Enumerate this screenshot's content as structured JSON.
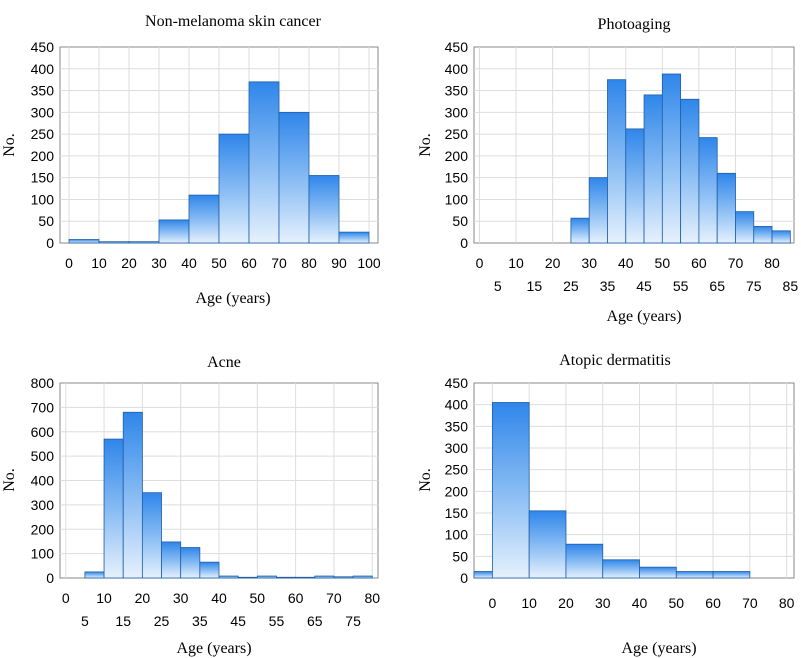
{
  "chart_data": [
    {
      "type": "bar",
      "title": "Non-melanoma skin cancer",
      "xlabel": "Age (years)",
      "ylabel": "No.",
      "bin_edges": [
        0,
        10,
        20,
        30,
        40,
        50,
        60,
        70,
        80,
        90,
        100
      ],
      "values": [
        8,
        3,
        3,
        53,
        110,
        250,
        370,
        300,
        155,
        25
      ],
      "xlim": [
        -3,
        103
      ],
      "ylim": [
        0,
        450
      ],
      "yticks": [
        0,
        50,
        100,
        150,
        200,
        250,
        300,
        350,
        400,
        450
      ],
      "xticks_row1": [
        0,
        10,
        20,
        30,
        40,
        50,
        60,
        70,
        80,
        90,
        100
      ],
      "xticks_row2": []
    },
    {
      "type": "bar",
      "title": "Photoaging",
      "xlabel": "Age (years)",
      "ylabel": "No.",
      "bin_edges": [
        0,
        5,
        10,
        15,
        20,
        25,
        30,
        35,
        40,
        45,
        50,
        55,
        60,
        65,
        70,
        75,
        80,
        85
      ],
      "values": [
        0,
        0,
        0,
        0,
        0,
        57,
        150,
        375,
        262,
        340,
        388,
        330,
        242,
        160,
        72,
        38,
        28
      ],
      "xlim": [
        -1.5,
        86
      ],
      "ylim": [
        0,
        450
      ],
      "yticks": [
        0,
        50,
        100,
        150,
        200,
        250,
        300,
        350,
        400,
        450
      ],
      "xticks_row1": [
        0,
        10,
        20,
        30,
        40,
        50,
        60,
        70,
        80
      ],
      "xticks_row2": [
        5,
        15,
        25,
        35,
        45,
        55,
        65,
        75,
        85
      ]
    },
    {
      "type": "bar",
      "title": "Acne",
      "xlabel": "Age (years)",
      "ylabel": "No.",
      "bin_edges": [
        0,
        5,
        10,
        15,
        20,
        25,
        30,
        35,
        40,
        45,
        50,
        55,
        60,
        65,
        70,
        75,
        80
      ],
      "values": [
        0,
        25,
        570,
        680,
        350,
        148,
        125,
        65,
        8,
        3,
        8,
        3,
        3,
        8,
        5,
        8
      ],
      "xlim": [
        -1.5,
        81.5
      ],
      "ylim": [
        0,
        800
      ],
      "yticks": [
        0,
        100,
        200,
        300,
        400,
        500,
        600,
        700,
        800
      ],
      "xticks_row1": [
        0,
        10,
        20,
        30,
        40,
        50,
        60,
        70,
        80
      ],
      "xticks_row2": [
        5,
        15,
        25,
        35,
        45,
        55,
        65,
        75
      ]
    },
    {
      "type": "bar",
      "title": "Atopic dermatitis",
      "xlabel": "Age (years)",
      "ylabel": "No.",
      "bin_edges": [
        -10,
        0,
        10,
        20,
        30,
        40,
        50,
        60,
        70,
        80
      ],
      "values": [
        15,
        405,
        155,
        78,
        42,
        25,
        15,
        15,
        0
      ],
      "xlim": [
        -5,
        82
      ],
      "ylim": [
        0,
        450
      ],
      "yticks": [
        0,
        50,
        100,
        150,
        200,
        250,
        300,
        350,
        400,
        450
      ],
      "xticks_row1": [
        0,
        10,
        20,
        30,
        40,
        50,
        60,
        70,
        80
      ],
      "xticks_row2": []
    }
  ]
}
